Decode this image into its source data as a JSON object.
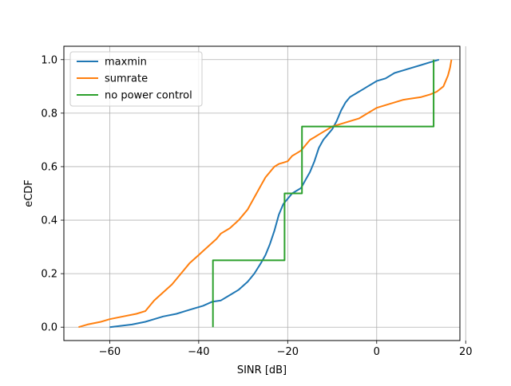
{
  "chart_data": {
    "type": "line",
    "title": "",
    "xlabel": "SINR [dB]",
    "ylabel": "eCDF",
    "xlim": [
      -70.3,
      18.7
    ],
    "ylim": [
      -0.05,
      1.05
    ],
    "xticks": [
      -60,
      -40,
      -20,
      0,
      20
    ],
    "xtick_labels": [
      "−60",
      "−40",
      "−20",
      "0",
      "20"
    ],
    "yticks": [
      0.0,
      0.2,
      0.4,
      0.6,
      0.8,
      1.0
    ],
    "ytick_labels": [
      "0.0",
      "0.2",
      "0.4",
      "0.6",
      "0.8",
      "1.0"
    ],
    "grid": true,
    "legend_position": "upper left",
    "series": [
      {
        "name": "maxmin",
        "color": "#1f77b4",
        "x": [
          -60,
          -55,
          -52,
          -50,
          -48,
          -45,
          -43,
          -41,
          -39,
          -37,
          -35,
          -33,
          -31,
          -29,
          -27.5,
          -26,
          -25,
          -24,
          -23,
          -22,
          -21,
          -20,
          -19,
          -18,
          -17,
          -16,
          -15,
          -14,
          -13,
          -12,
          -11,
          -10,
          -9,
          -8,
          -7,
          -6,
          -5,
          -4,
          -3,
          -2,
          -1,
          0,
          2,
          4,
          6,
          8,
          10,
          12,
          14
        ],
        "y": [
          0.0,
          0.01,
          0.02,
          0.03,
          0.04,
          0.05,
          0.06,
          0.07,
          0.08,
          0.095,
          0.1,
          0.12,
          0.14,
          0.17,
          0.2,
          0.24,
          0.27,
          0.31,
          0.36,
          0.42,
          0.46,
          0.48,
          0.5,
          0.51,
          0.52,
          0.55,
          0.58,
          0.62,
          0.67,
          0.7,
          0.72,
          0.74,
          0.77,
          0.81,
          0.84,
          0.86,
          0.87,
          0.88,
          0.89,
          0.9,
          0.91,
          0.92,
          0.93,
          0.95,
          0.96,
          0.97,
          0.98,
          0.99,
          1.0
        ]
      },
      {
        "name": "sumrate",
        "color": "#ff7f0e",
        "x": [
          -67,
          -65,
          -62,
          -60,
          -57,
          -54,
          -52,
          -51,
          -50,
          -48,
          -46,
          -44,
          -42,
          -40,
          -38,
          -36,
          -35,
          -33,
          -31,
          -30,
          -29,
          -28,
          -27,
          -26,
          -25,
          -24,
          -23,
          -22,
          -21,
          -20,
          -19,
          -18,
          -17,
          -16,
          -15,
          -14,
          -13,
          -12,
          -11,
          -10,
          -8,
          -6,
          -4,
          -2,
          0,
          2,
          4,
          6,
          8,
          10,
          12,
          13.5,
          15,
          16,
          16.5,
          16.8
        ],
        "y": [
          0.0,
          0.01,
          0.02,
          0.03,
          0.04,
          0.05,
          0.06,
          0.08,
          0.1,
          0.13,
          0.16,
          0.2,
          0.24,
          0.27,
          0.3,
          0.33,
          0.35,
          0.37,
          0.4,
          0.42,
          0.44,
          0.47,
          0.5,
          0.53,
          0.56,
          0.58,
          0.6,
          0.61,
          0.615,
          0.62,
          0.64,
          0.65,
          0.66,
          0.68,
          0.7,
          0.71,
          0.72,
          0.73,
          0.74,
          0.75,
          0.76,
          0.77,
          0.78,
          0.8,
          0.82,
          0.83,
          0.84,
          0.85,
          0.855,
          0.86,
          0.87,
          0.88,
          0.9,
          0.94,
          0.97,
          1.0
        ]
      },
      {
        "name": "no power control",
        "color": "#2ca02c",
        "x": [
          -36.8,
          -36.8,
          -20.7,
          -20.7,
          -16.8,
          -16.8,
          12.8,
          12.8
        ],
        "y": [
          0.0,
          0.25,
          0.25,
          0.5,
          0.5,
          0.75,
          0.75,
          1.0
        ]
      }
    ]
  }
}
